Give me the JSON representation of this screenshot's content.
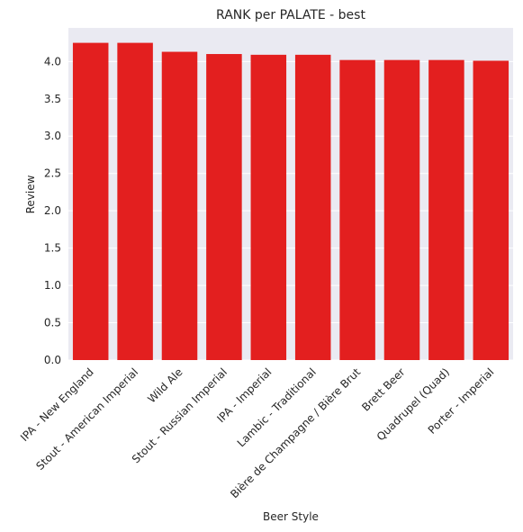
{
  "chart_data": {
    "type": "bar",
    "title": "RANK per PALATE - best",
    "xlabel": "Beer Style",
    "ylabel": "Review",
    "categories": [
      "IPA - New England",
      "Stout - American Imperial",
      "Wild Ale",
      "Stout - Russian Imperial",
      "IPA - Imperial",
      "Lambic - Traditional",
      "Bière de Champagne / Bière Brut",
      "Brett Beer",
      "Quadrupel (Quad)",
      "Porter - Imperial"
    ],
    "values": [
      4.25,
      4.25,
      4.13,
      4.1,
      4.09,
      4.09,
      4.02,
      4.02,
      4.02,
      4.01
    ],
    "ylim": [
      0,
      4.45
    ],
    "yticks": [
      0.0,
      0.5,
      1.0,
      1.5,
      2.0,
      2.5,
      3.0,
      3.5,
      4.0
    ],
    "ytick_labels": [
      "0.0",
      "0.5",
      "1.0",
      "1.5",
      "2.0",
      "2.5",
      "3.0",
      "3.5",
      "4.0"
    ],
    "grid": true,
    "colors": {
      "bar": "#e31f1f",
      "plot_background": "#eaeaf2",
      "grid": "#ffffff",
      "text": "#262626"
    }
  }
}
